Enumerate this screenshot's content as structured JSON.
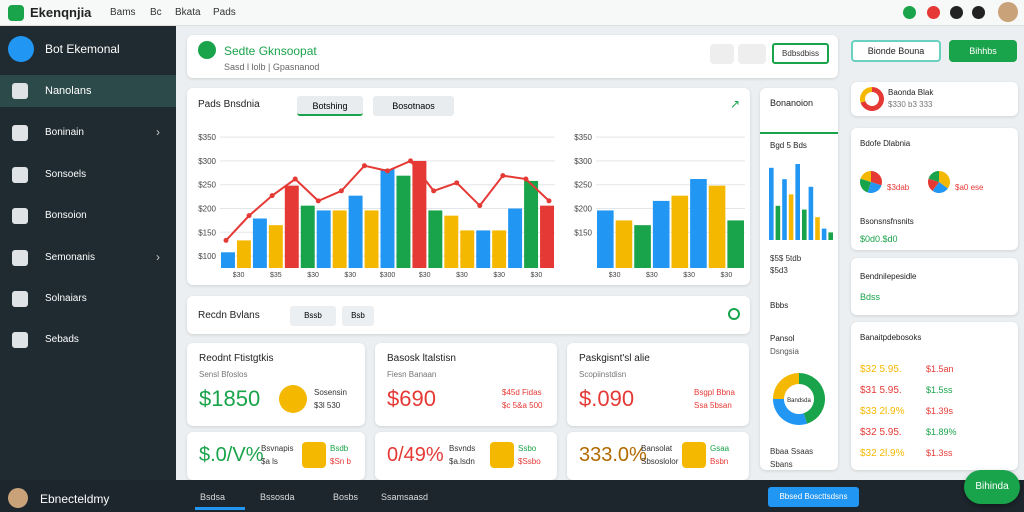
{
  "topbar": {
    "brand": "Ekenqnjia",
    "nav": [
      "Bams",
      "Bc",
      "Bkata",
      "Pads"
    ]
  },
  "sidebar": {
    "title": "Bot Ekemonal",
    "items": [
      "Nanolans",
      "Boninain",
      "Sonsoels",
      "Bonsoion",
      "Semonanis",
      "Solnaiars",
      "Sebads"
    ]
  },
  "header": {
    "title": "Sedte Gknsoopat",
    "subtitle": "Sasd l lolb | Gpasnanod",
    "button": "Bdbsdbiss"
  },
  "top_actions": [
    "Bionde Bouna",
    "Bihhbs"
  ],
  "chart_panel": {
    "title": "Pads Bnsdnia",
    "tabs": [
      "Botshing",
      "Bosotnaos"
    ],
    "left_chart": {
      "ylim": [
        75,
        365
      ],
      "yticks": [
        {
          "value": 350,
          "label": "$350"
        },
        {
          "value": 300,
          "label": "$300"
        },
        {
          "value": 250,
          "label": "$250"
        },
        {
          "value": 200,
          "label": "$200"
        },
        {
          "value": 150,
          "label": "$150"
        },
        {
          "value": 100,
          "label": "$100"
        }
      ],
      "bars": {
        "values": [
          108,
          133,
          179,
          165,
          248,
          206,
          196,
          196,
          227,
          196,
          283,
          269,
          300,
          196,
          185,
          154,
          154,
          154,
          200,
          258,
          206
        ],
        "colors": [
          "#2196f3",
          "#f5b800",
          "#2196f3",
          "#f5b800",
          "#e53935",
          "#19a34a",
          "#2196f3",
          "#f5b800",
          "#2196f3",
          "#f5b800",
          "#2196f3",
          "#19a34a",
          "#e53935",
          "#19a34a",
          "#f5b800",
          "#f5b800",
          "#2196f3",
          "#f5b800",
          "#2196f3",
          "#19a34a",
          "#e53935"
        ]
      },
      "line": {
        "color": "#e53935",
        "values": [
          133,
          185,
          227,
          262,
          216,
          237,
          290,
          279,
          300,
          237,
          254,
          206,
          269,
          262,
          216
        ]
      },
      "x_labels": [
        "$30",
        "$35",
        "$30",
        "$30",
        "$300",
        "$30",
        "$30",
        "$30",
        "$30"
      ]
    },
    "right_chart": {
      "ylim": [
        75,
        365
      ],
      "yticks": [
        {
          "value": 350,
          "label": "$350"
        },
        {
          "value": 300,
          "label": "$300"
        },
        {
          "value": 250,
          "label": "$250"
        },
        {
          "value": 200,
          "label": "$200"
        },
        {
          "value": 150,
          "label": "$150"
        }
      ],
      "bars": {
        "values": [
          196,
          175,
          165,
          216,
          227,
          262,
          248,
          175
        ],
        "colors": [
          "#2196f3",
          "#f5b800",
          "#19a34a",
          "#2196f3",
          "#f5b800",
          "#2196f3",
          "#f5b800",
          "#19a34a"
        ]
      },
      "x_labels": [
        "$30",
        "$30",
        "$30",
        "$30"
      ]
    }
  },
  "side_panel": {
    "title": "Bonanoion",
    "chart_title": "Bgd 5 Bds",
    "mini_bars": {
      "ylim": [
        0,
        100
      ],
      "values": [
        95,
        45,
        80,
        60,
        100,
        40,
        70,
        30,
        15,
        10
      ],
      "colors": [
        "#2196f3",
        "#19a34a",
        "#2196f3",
        "#f5b800",
        "#2196f3",
        "#19a34a",
        "#2196f3",
        "#f5b800",
        "#2196f3",
        "#19a34a"
      ]
    },
    "legend": [
      "$5$ 5tdb",
      "$5d3"
    ],
    "tag": "Bbbs",
    "stat_title": "Pansol",
    "stat_sub": "Dsngsia",
    "donut": {
      "values": [
        45,
        30,
        25
      ],
      "colors": [
        "#19a34a",
        "#2196f3",
        "#f5b800"
      ],
      "label": "Bandsda"
    },
    "foot": [
      "Bbaa Ssaas",
      "Sbans"
    ]
  },
  "recent": {
    "title": "Recdn Bvlans",
    "filters": [
      "Bssb",
      "Bsb"
    ]
  },
  "stat_cards": [
    {
      "title": "Reodnt Ftistgtkis",
      "subtitle": "Sensl Bfoslos",
      "value": "$1850",
      "side": [
        "Sosensin",
        "$3l 530"
      ]
    },
    {
      "title": "Basosk ltalstisn",
      "subtitle": "Fiesn Banaan",
      "value": "$690",
      "side": [
        "$45d Fidas",
        "$c 5&a 500"
      ]
    },
    {
      "title": "Paskgisnt'sl alie",
      "subtitle": "Scopiinstdisn",
      "value": "$.090",
      "side": [
        "Bsgpl Bbna",
        "Ssa 5bsan"
      ]
    },
    {
      "value": "$.0/V%",
      "side": [
        "Bsvnapis",
        "$a ls"
      ],
      "badge": [
        "Bsdb",
        "$Sn b"
      ]
    },
    {
      "value": "0/49%",
      "side": [
        "Bsvnds",
        "$a.lsdn"
      ],
      "badge": [
        "Ssbo",
        "$Ssbo"
      ]
    },
    {
      "value": "333.0%",
      "side": [
        "Bansolat",
        "Sbsoslolor"
      ],
      "badge": [
        "Gsaa",
        "Bsbn"
      ]
    }
  ],
  "right_cards": {
    "balance": {
      "title": "Baonda Blak",
      "value": "$330 b3 333",
      "ring": {
        "values": [
          70,
          30
        ],
        "colors": [
          "#e53935",
          "#f5b800"
        ]
      }
    },
    "pies": {
      "title": "Bdofe Dlabnia",
      "labels": [
        "$3dab",
        "$a0 ese"
      ],
      "pie1": {
        "values": [
          30,
          25,
          25,
          20
        ],
        "colors": [
          "#e53935",
          "#2196f3",
          "#19a34a",
          "#f5b800"
        ]
      },
      "pie2": {
        "values": [
          35,
          25,
          20,
          20
        ],
        "colors": [
          "#f5b800",
          "#2196f3",
          "#e53935",
          "#19a34a"
        ]
      },
      "caption": "Bsonsnsfnsnits",
      "total": "$0d0.$d0"
    },
    "info": {
      "title": "Bendnilepesidle",
      "tag": "Bdss"
    },
    "list": {
      "title": "Banaitpdebosoks",
      "rows": [
        [
          "$32 5.95.",
          "$1.5an"
        ],
        [
          "$31 5.95.",
          "$1.5ss"
        ],
        [
          "$33 2l.9%",
          "$1.39s"
        ],
        [
          "$32 5.95.",
          "$1.89%"
        ],
        [
          "$32 2l.9%",
          "$1.3ss"
        ]
      ]
    }
  },
  "bottombar": {
    "user": "Ebnecteldmy",
    "tabs": [
      "Bsdsa",
      "Bssosda",
      "Bosbs",
      "Ssamsaasd"
    ],
    "button": "Bbsed Boscttsdsns",
    "fab": "Bihinda"
  }
}
